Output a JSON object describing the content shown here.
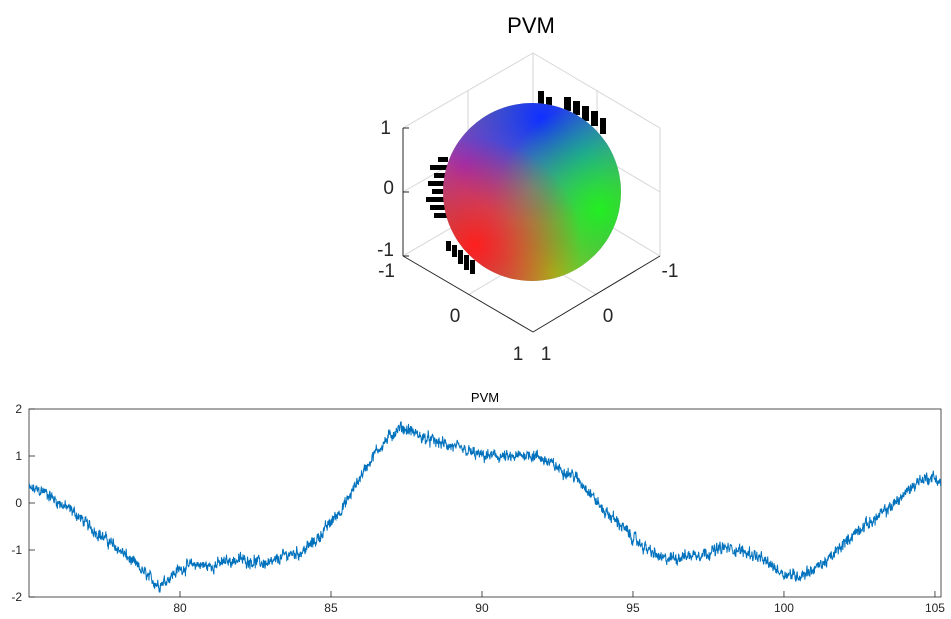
{
  "chart_data": [
    {
      "type": "scatter",
      "subtype": "3d-sphere",
      "title": "PVM",
      "axes": {
        "z_ticks": [
          "1",
          "0",
          "-1"
        ],
        "left_ticks": [
          "-1",
          "0",
          "1"
        ],
        "right_ticks": [
          "1",
          "0",
          "-1"
        ]
      },
      "surface": "unit sphere, RGB colour-coded by direction",
      "grid": true
    },
    {
      "type": "line",
      "title": "PVM",
      "xlim": [
        75,
        105.2
      ],
      "ylim": [
        -2,
        2
      ],
      "x_ticks": [
        "80",
        "85",
        "90",
        "95",
        "100",
        "105"
      ],
      "y_ticks": [
        "2",
        "1",
        "0",
        "-1",
        "-2"
      ],
      "series_color": "#0072BD",
      "series": [
        {
          "x": [
            75,
            75.5,
            76,
            76.5,
            77,
            77.5,
            78,
            78.5,
            79,
            79.3,
            79.6,
            80,
            80.5,
            81,
            81.5,
            82,
            82.5,
            83,
            83.5,
            84,
            84.5,
            85,
            85.5,
            86,
            86.5,
            87,
            87.3,
            87.6,
            88,
            88.5,
            89,
            89.5,
            90,
            90.5,
            91,
            91.5,
            92,
            92.5,
            93,
            93.5,
            94,
            94.5,
            95,
            95.5,
            96,
            96.5,
            97,
            97.5,
            98,
            98.5,
            99,
            99.5,
            100,
            100.5,
            101,
            101.5,
            102,
            102.5,
            103,
            103.5,
            104,
            104.5,
            105,
            105.2
          ],
          "values": [
            0.3,
            0.25,
            0.0,
            -0.2,
            -0.5,
            -0.75,
            -1.0,
            -1.3,
            -1.6,
            -1.75,
            -1.6,
            -1.4,
            -1.3,
            -1.35,
            -1.25,
            -1.2,
            -1.25,
            -1.3,
            -1.1,
            -1.05,
            -0.8,
            -0.4,
            0.0,
            0.6,
            1.1,
            1.45,
            1.6,
            1.55,
            1.4,
            1.3,
            1.2,
            1.1,
            1.0,
            1.0,
            0.95,
            1.05,
            0.95,
            0.75,
            0.6,
            0.3,
            -0.15,
            -0.4,
            -0.75,
            -1.0,
            -1.2,
            -1.15,
            -1.1,
            -1.05,
            -0.95,
            -1.0,
            -1.1,
            -1.3,
            -1.5,
            -1.55,
            -1.4,
            -1.2,
            -0.85,
            -0.55,
            -0.35,
            -0.1,
            0.2,
            0.5,
            0.55,
            0.4
          ]
        }
      ]
    }
  ]
}
